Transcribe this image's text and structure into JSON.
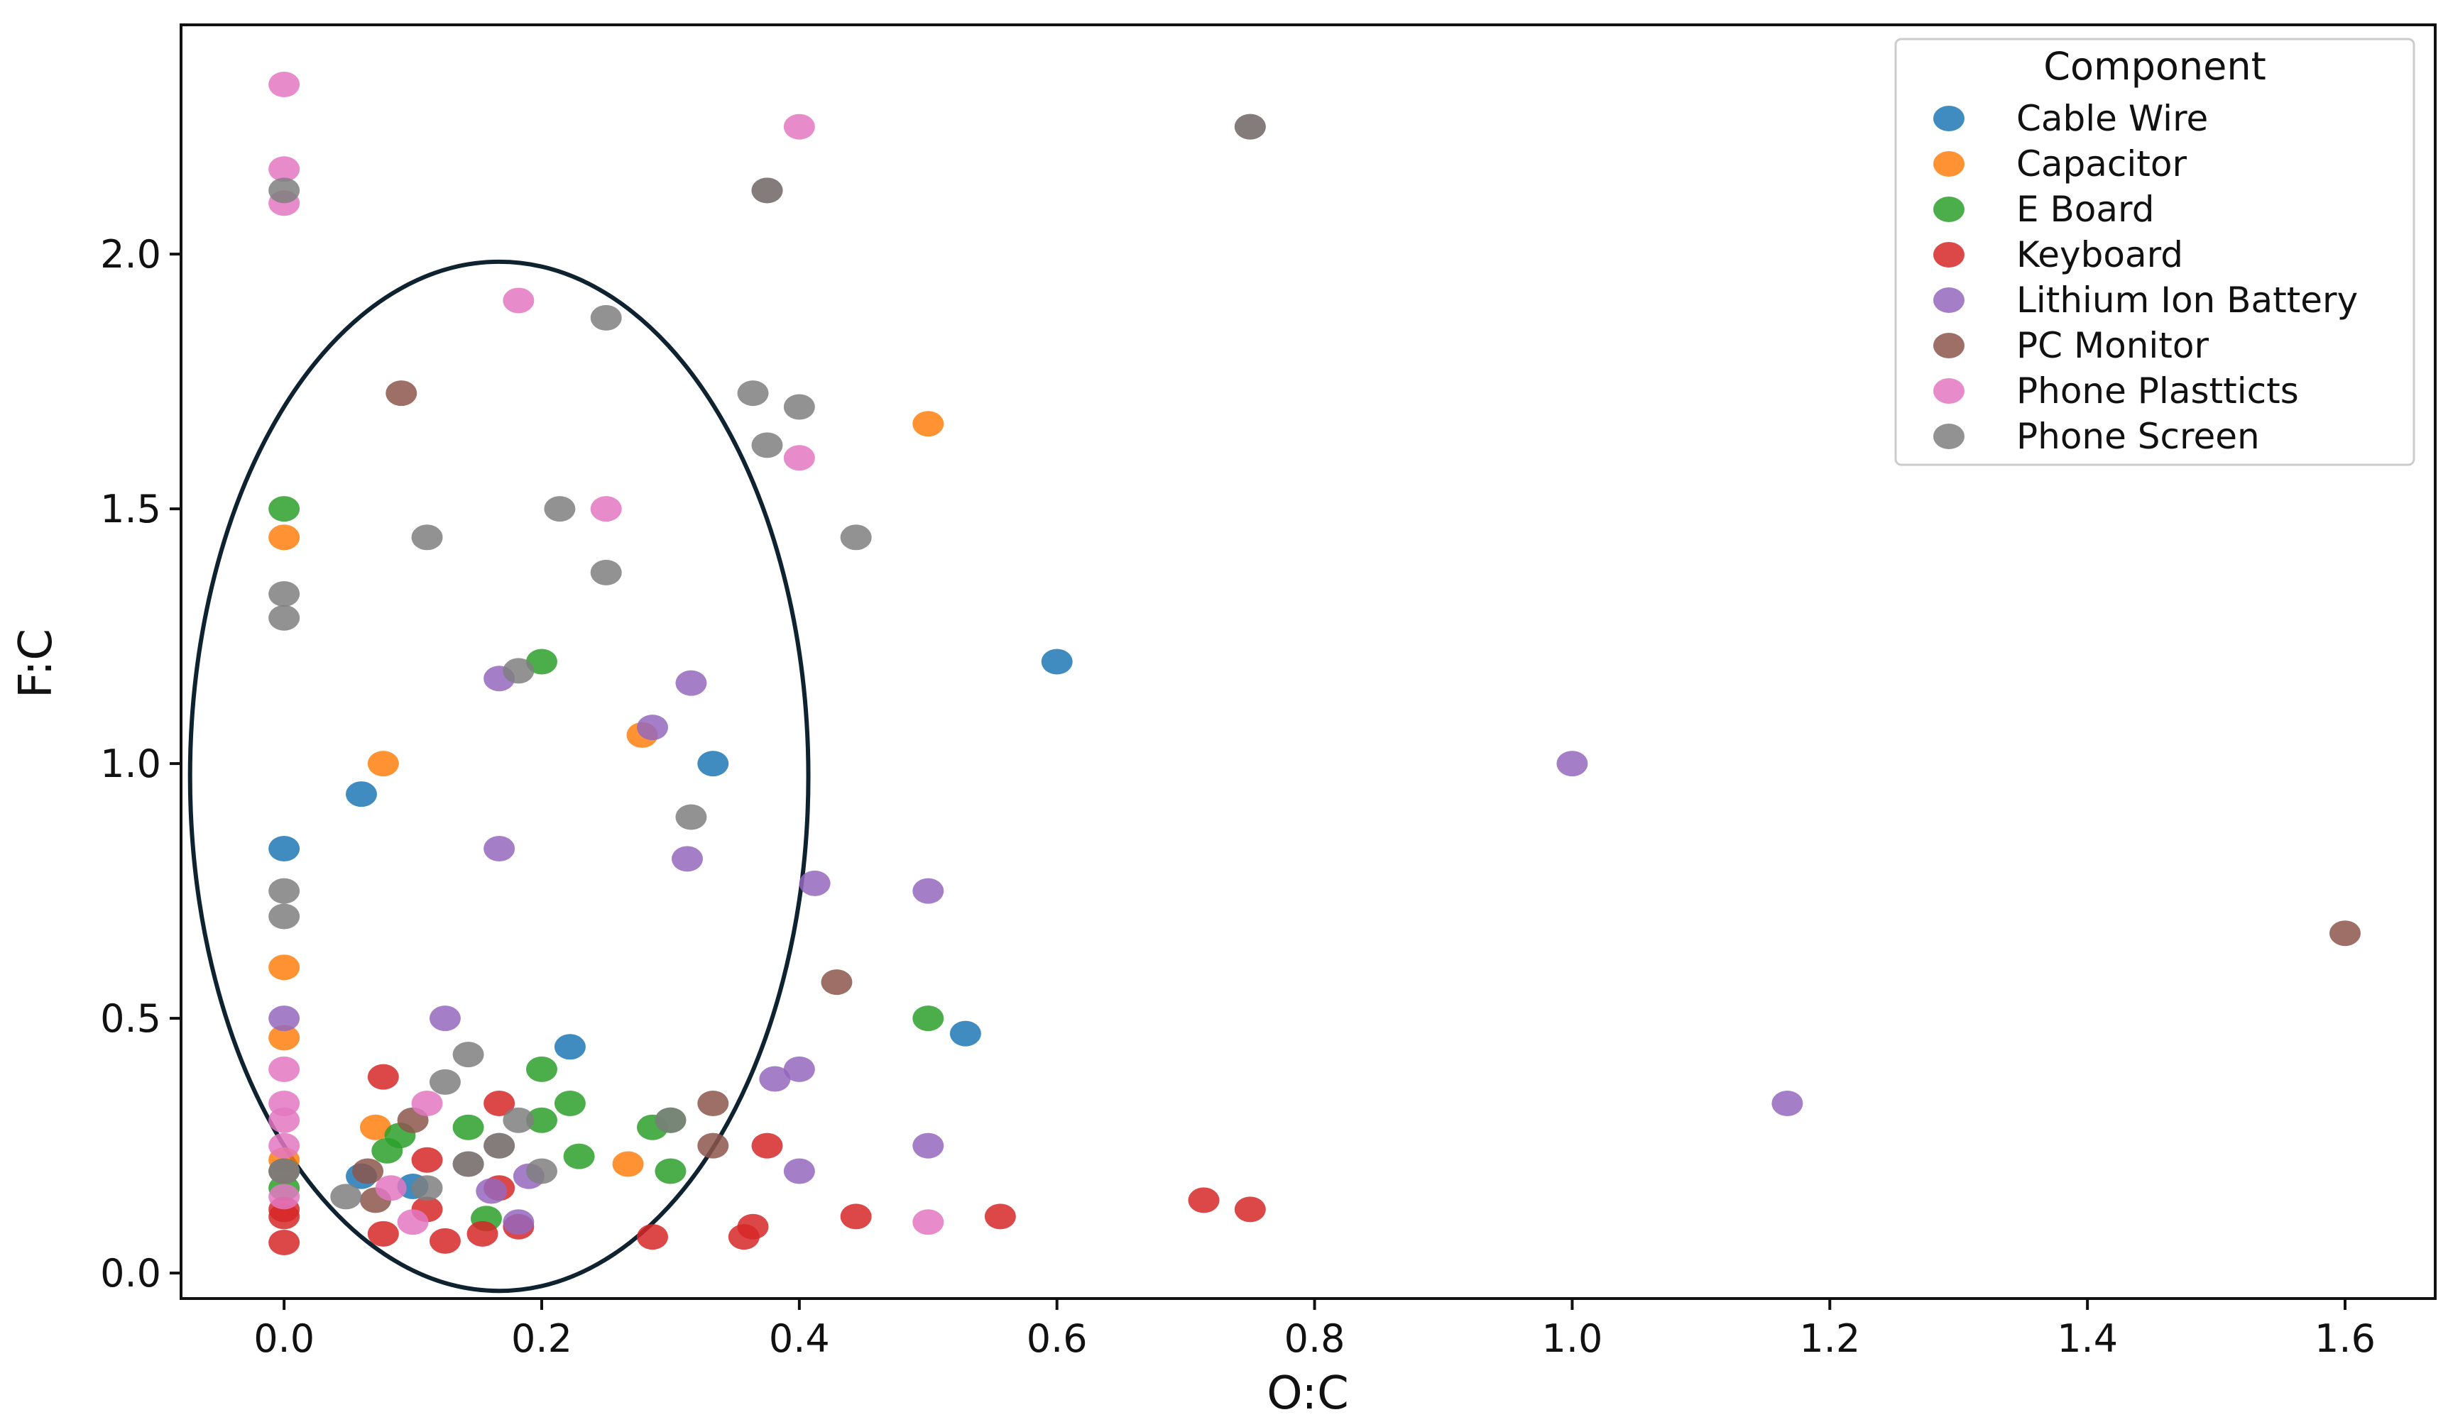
{
  "chart_data": {
    "type": "scatter",
    "title": "",
    "xlabel": "O:C",
    "ylabel": "F:C",
    "xlim": [
      -0.08,
      1.67
    ],
    "ylim": [
      -0.05,
      2.45
    ],
    "xticks": [
      0.0,
      0.2,
      0.4,
      0.6,
      0.8,
      1.0,
      1.2,
      1.4,
      1.6
    ],
    "xtick_labels": [
      "0.0",
      "0.2",
      "0.4",
      "0.6",
      "0.8",
      "1.0",
      "1.2",
      "1.4",
      "1.6"
    ],
    "yticks": [
      0.0,
      0.5,
      1.0,
      1.5,
      2.0
    ],
    "ytick_labels": [
      "0.0",
      "0.5",
      "1.0",
      "1.5",
      "2.0"
    ],
    "grid": false,
    "legend": {
      "title": "Component",
      "placement": "top-right"
    },
    "annotations": [
      {
        "type": "ellipse",
        "center": [
          0.167,
          0.975
        ],
        "x_radius": 0.24,
        "y_radius": 1.01,
        "color": "#0f2230"
      }
    ],
    "series": [
      {
        "name": "Cable Wire",
        "color": "#1f77b4",
        "points": [
          [
            0.6,
            1.2
          ],
          [
            0.333,
            1.0
          ],
          [
            0.06,
            0.94
          ],
          [
            0.0,
            0.833
          ],
          [
            0.529,
            0.47
          ],
          [
            0.222,
            0.444
          ],
          [
            0.06,
            0.19
          ],
          [
            0.1,
            0.17
          ]
        ]
      },
      {
        "name": "Capacitor",
        "color": "#ff7f0e",
        "points": [
          [
            0.5,
            1.667
          ],
          [
            0.0,
            1.444
          ],
          [
            0.077,
            1.0
          ],
          [
            0.278,
            1.056
          ],
          [
            0.0,
            0.6
          ],
          [
            0.0,
            0.462
          ],
          [
            0.071,
            0.286
          ],
          [
            0.267,
            0.214
          ],
          [
            0.0,
            0.222
          ]
        ]
      },
      {
        "name": "E Board",
        "color": "#2ca02c",
        "points": [
          [
            0.0,
            1.5
          ],
          [
            0.2,
            1.2
          ],
          [
            0.5,
            0.5
          ],
          [
            0.2,
            0.4
          ],
          [
            0.222,
            0.333
          ],
          [
            0.2,
            0.3
          ],
          [
            0.143,
            0.286
          ],
          [
            0.286,
            0.286
          ],
          [
            0.3,
            0.3
          ],
          [
            0.08,
            0.24
          ],
          [
            0.09,
            0.27
          ],
          [
            0.229,
            0.229
          ],
          [
            0.3,
            0.2
          ],
          [
            0.157,
            0.107
          ],
          [
            0.0,
            0.2
          ],
          [
            0.0,
            0.167
          ]
        ]
      },
      {
        "name": "Keyboard",
        "color": "#d62728",
        "points": [
          [
            0.077,
            0.385
          ],
          [
            0.167,
            0.333
          ],
          [
            0.375,
            0.25
          ],
          [
            0.111,
            0.222
          ],
          [
            0.167,
            0.167
          ],
          [
            0.0,
            0.125
          ],
          [
            0.0,
            0.111
          ],
          [
            0.0,
            0.06
          ],
          [
            0.077,
            0.077
          ],
          [
            0.111,
            0.125
          ],
          [
            0.125,
            0.063
          ],
          [
            0.154,
            0.077
          ],
          [
            0.182,
            0.091
          ],
          [
            0.286,
            0.071
          ],
          [
            0.357,
            0.071
          ],
          [
            0.364,
            0.091
          ],
          [
            0.444,
            0.111
          ],
          [
            0.556,
            0.111
          ],
          [
            0.714,
            0.143
          ],
          [
            0.75,
            0.125
          ]
        ]
      },
      {
        "name": "Lithium Ion Battery",
        "color": "#9467bd",
        "points": [
          [
            0.167,
            1.167
          ],
          [
            0.316,
            1.158
          ],
          [
            0.286,
            1.071
          ],
          [
            0.167,
            0.833
          ],
          [
            0.313,
            0.813
          ],
          [
            1.0,
            1.0
          ],
          [
            0.412,
            0.765
          ],
          [
            0.5,
            0.75
          ],
          [
            0.125,
            0.5
          ],
          [
            0.0,
            0.5
          ],
          [
            0.381,
            0.381
          ],
          [
            0.4,
            0.4
          ],
          [
            0.4,
            0.2
          ],
          [
            0.5,
            0.25
          ],
          [
            1.167,
            0.333
          ],
          [
            0.19,
            0.19
          ],
          [
            0.161,
            0.161
          ],
          [
            0.182,
            0.1
          ]
        ]
      },
      {
        "name": "PC Monitor",
        "color": "#8c564b",
        "points": [
          [
            0.091,
            1.727
          ],
          [
            1.6,
            0.667
          ],
          [
            0.429,
            0.571
          ],
          [
            0.333,
            0.333
          ],
          [
            0.333,
            0.25
          ],
          [
            0.1,
            0.3
          ],
          [
            0.167,
            0.25
          ],
          [
            0.065,
            0.2
          ],
          [
            0.071,
            0.143
          ],
          [
            0.143,
            0.214
          ],
          [
            0.0,
            0.2
          ],
          [
            0.75,
            2.25
          ],
          [
            0.375,
            2.125
          ]
        ]
      },
      {
        "name": "Phone Plastticts",
        "color": "#e377c2",
        "points": [
          [
            0.0,
            2.333
          ],
          [
            0.4,
            2.25
          ],
          [
            0.0,
            2.167
          ],
          [
            0.0,
            2.1
          ],
          [
            0.182,
            1.909
          ],
          [
            0.4,
            1.6
          ],
          [
            0.25,
            1.5
          ],
          [
            0.0,
            0.4
          ],
          [
            0.0,
            0.333
          ],
          [
            0.0,
            0.3
          ],
          [
            0.111,
            0.333
          ],
          [
            0.0,
            0.25
          ],
          [
            0.083,
            0.167
          ],
          [
            0.1,
            0.1
          ],
          [
            0.5,
            0.1
          ],
          [
            0.0,
            0.15
          ]
        ]
      },
      {
        "name": "Phone Screen",
        "color": "#7f7f7f",
        "points": [
          [
            0.0,
            2.125
          ],
          [
            0.375,
            2.125
          ],
          [
            0.75,
            2.25
          ],
          [
            0.25,
            1.875
          ],
          [
            0.364,
            1.727
          ],
          [
            0.4,
            1.7
          ],
          [
            0.375,
            1.625
          ],
          [
            0.214,
            1.5
          ],
          [
            0.111,
            1.444
          ],
          [
            0.444,
            1.444
          ],
          [
            0.25,
            1.375
          ],
          [
            0.0,
            1.333
          ],
          [
            0.0,
            1.286
          ],
          [
            0.182,
            1.182
          ],
          [
            0.316,
            0.895
          ],
          [
            0.0,
            0.75
          ],
          [
            0.0,
            0.7
          ],
          [
            0.143,
            0.429
          ],
          [
            0.125,
            0.375
          ],
          [
            0.3,
            0.3
          ],
          [
            0.182,
            0.3
          ],
          [
            0.167,
            0.25
          ],
          [
            0.143,
            0.214
          ],
          [
            0.2,
            0.2
          ],
          [
            0.111,
            0.167
          ],
          [
            0.048,
            0.15
          ],
          [
            0.0,
            0.2
          ]
        ]
      }
    ]
  }
}
